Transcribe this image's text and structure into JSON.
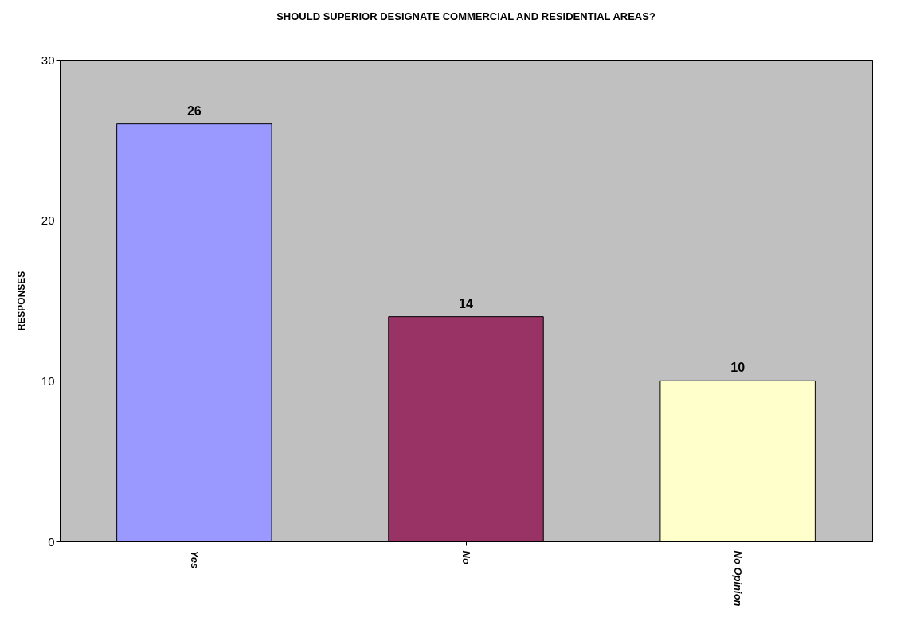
{
  "chart_data": {
    "type": "bar",
    "title": "SHOULD SUPERIOR DESIGNATE COMMERCIAL AND RESIDENTIAL AREAS?",
    "ylabel": "RESPONSES",
    "categories": [
      "Yes",
      "No",
      "No Opinion"
    ],
    "values": [
      26,
      14,
      10
    ],
    "colors": [
      "#9999ff",
      "#993366",
      "#ffffcc"
    ],
    "ylim": [
      0,
      30
    ],
    "yticks": [
      0,
      10,
      20,
      30
    ],
    "grid": "y",
    "data_labels": true
  }
}
